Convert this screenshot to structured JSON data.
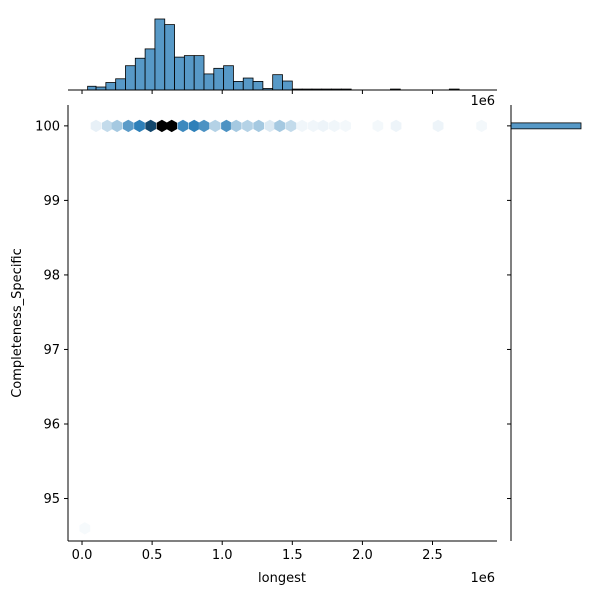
{
  "chart_data": {
    "type": "hexbin-jointplot",
    "xlabel": "longest",
    "ylabel": "Completeness_Specific",
    "x_offset_label": "1e6",
    "y_offset_label": "1e6",
    "x_ticks": [
      0.0,
      0.5,
      1.0,
      1.5,
      2.0,
      2.5
    ],
    "x_tick_labels": [
      "0.0",
      "0.5",
      "1.0",
      "1.5",
      "2.0",
      "2.5"
    ],
    "y_ticks": [
      95,
      96,
      97,
      98,
      99,
      100
    ],
    "y_tick_labels": [
      "95",
      "96",
      "97",
      "98",
      "99",
      "100"
    ],
    "xlim": [
      -0.1,
      2.96
    ],
    "ylim": [
      94.43,
      100.28
    ],
    "color": "#1f77b4",
    "hexbins": [
      {
        "x": 0.02,
        "y": 94.6,
        "density": 0.03
      },
      {
        "x": 0.1,
        "y": 100,
        "density": 0.08
      },
      {
        "x": 0.18,
        "y": 100,
        "density": 0.2
      },
      {
        "x": 0.25,
        "y": 100,
        "density": 0.3
      },
      {
        "x": 0.33,
        "y": 100,
        "density": 0.55
      },
      {
        "x": 0.41,
        "y": 100,
        "density": 0.7
      },
      {
        "x": 0.49,
        "y": 100,
        "density": 0.85
      },
      {
        "x": 0.57,
        "y": 100,
        "density": 1.0
      },
      {
        "x": 0.64,
        "y": 100,
        "density": 1.0
      },
      {
        "x": 0.72,
        "y": 100,
        "density": 0.65
      },
      {
        "x": 0.8,
        "y": 100,
        "density": 0.7
      },
      {
        "x": 0.87,
        "y": 100,
        "density": 0.6
      },
      {
        "x": 0.95,
        "y": 100,
        "density": 0.25
      },
      {
        "x": 1.03,
        "y": 100,
        "density": 0.6
      },
      {
        "x": 1.1,
        "y": 100,
        "density": 0.3
      },
      {
        "x": 1.18,
        "y": 100,
        "density": 0.25
      },
      {
        "x": 1.26,
        "y": 100,
        "density": 0.3
      },
      {
        "x": 1.34,
        "y": 100,
        "density": 0.12
      },
      {
        "x": 1.41,
        "y": 100,
        "density": 0.3
      },
      {
        "x": 1.49,
        "y": 100,
        "density": 0.2
      },
      {
        "x": 1.57,
        "y": 100,
        "density": 0.05
      },
      {
        "x": 1.65,
        "y": 100,
        "density": 0.05
      },
      {
        "x": 1.72,
        "y": 100,
        "density": 0.06
      },
      {
        "x": 1.8,
        "y": 100,
        "density": 0.05
      },
      {
        "x": 1.88,
        "y": 100,
        "density": 0.04
      },
      {
        "x": 2.11,
        "y": 100,
        "density": 0.04
      },
      {
        "x": 2.24,
        "y": 100,
        "density": 0.06
      },
      {
        "x": 2.54,
        "y": 100,
        "density": 0.06
      },
      {
        "x": 2.85,
        "y": 100,
        "density": 0.04
      }
    ],
    "x_histogram": {
      "bin_edges": [
        0.04,
        0.1,
        0.17,
        0.24,
        0.31,
        0.38,
        0.45,
        0.52,
        0.59,
        0.66,
        0.73,
        0.8,
        0.87,
        0.94,
        1.01,
        1.08,
        1.15,
        1.22,
        1.29,
        1.36,
        1.43,
        1.5,
        1.57,
        1.64,
        1.71,
        1.78,
        1.85,
        1.92,
        1.99,
        2.06,
        2.13,
        2.2,
        2.27,
        2.34,
        2.41,
        2.48,
        2.55,
        2.62,
        2.69,
        2.76,
        2.83
      ],
      "counts": [
        1,
        0.8,
        2,
        3,
        6.5,
        8.5,
        11,
        19,
        17.5,
        8.8,
        9.2,
        9.2,
        4.3,
        5.8,
        6.5,
        2.3,
        3.2,
        2.3,
        0.4,
        4.1,
        2.4,
        0.25,
        0.25,
        0.25,
        0.25,
        0.25,
        0.25,
        0,
        0,
        0,
        0,
        0.25,
        0,
        0,
        0,
        0,
        0,
        0.25,
        0,
        0
      ]
    },
    "y_histogram": {
      "bin_edges": [
        99.96,
        100.04
      ],
      "counts": [
        1
      ]
    }
  }
}
